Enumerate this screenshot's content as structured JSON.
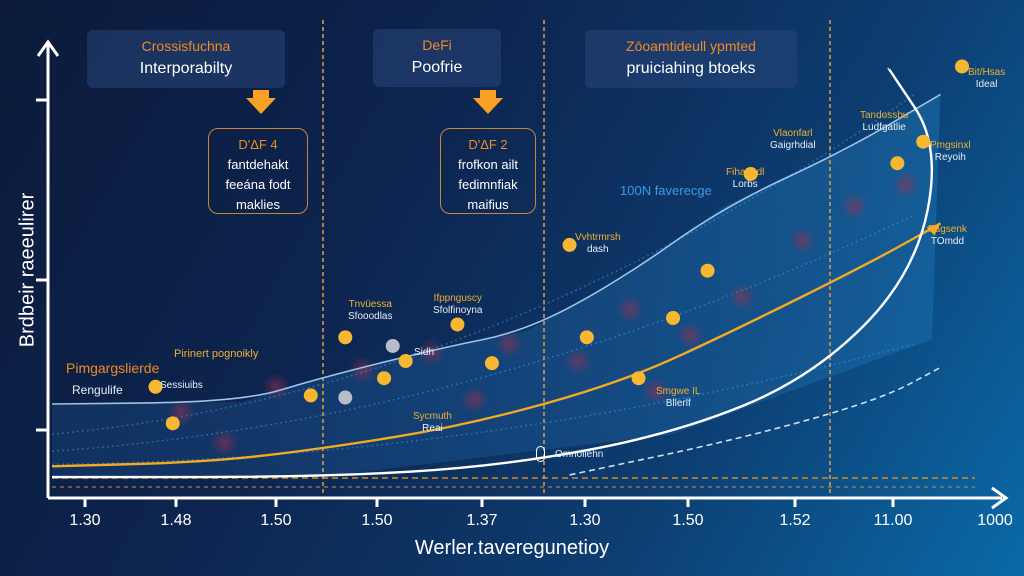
{
  "chart_data": {
    "type": "scatter",
    "title": "",
    "xlabel": "Werler.taveregunetioy",
    "ylabel": "Brdbeir raeeulirer",
    "x_tick_labels": [
      "1.30",
      "1.48",
      "1.50",
      "1.50",
      "1.37",
      "1.30",
      "1.50",
      "1.52",
      "11.00",
      "1000"
    ],
    "xlim": [
      0,
      10
    ],
    "ylim": [
      0,
      10
    ],
    "grid": false,
    "phase_dividers_x": [
      3.1,
      6.05,
      9.4
    ],
    "series": [
      {
        "name": "upper-band",
        "kind": "line",
        "color": "#9fc4e6",
        "points": [
          [
            0,
            2.0
          ],
          [
            2.2,
            2.05
          ],
          [
            3.1,
            2.6
          ],
          [
            4.5,
            3.3
          ],
          [
            5.5,
            3.7
          ],
          [
            6.6,
            4.9
          ],
          [
            7.8,
            6.6
          ],
          [
            9.2,
            7.9
          ],
          [
            10.3,
            9.2
          ]
        ]
      },
      {
        "name": "adoption-curve",
        "kind": "line",
        "color": "#f2aa22",
        "points": [
          [
            0,
            0.55
          ],
          [
            1.8,
            0.65
          ],
          [
            3.1,
            0.95
          ],
          [
            4.8,
            1.5
          ],
          [
            6.6,
            2.5
          ],
          [
            7.9,
            3.7
          ],
          [
            9.5,
            5.3
          ],
          [
            10.3,
            6.2
          ]
        ]
      },
      {
        "name": "baseline-curve",
        "kind": "line",
        "color": "#ffffff",
        "points": [
          [
            0,
            0.3
          ],
          [
            3.1,
            0.3
          ],
          [
            5.2,
            0.55
          ],
          [
            7.2,
            1.3
          ],
          [
            8.8,
            2.6
          ],
          [
            10.0,
            5.0
          ],
          [
            10.3,
            8.0
          ],
          [
            9.7,
            9.8
          ]
        ]
      },
      {
        "name": "projection-dashed",
        "kind": "line",
        "color": "#cfe0f0",
        "points": [
          [
            6.0,
            0.35
          ],
          [
            8.0,
            1.2
          ],
          [
            9.6,
            2.1
          ],
          [
            10.3,
            2.85
          ]
        ]
      },
      {
        "name": "milestones",
        "kind": "scatter",
        "color": "#f7b731",
        "points": [
          [
            1.4,
            1.55
          ],
          [
            1.2,
            2.4
          ],
          [
            3.0,
            2.2
          ],
          [
            3.4,
            3.55
          ],
          [
            3.85,
            2.6
          ],
          [
            4.1,
            3.0
          ],
          [
            4.7,
            3.85
          ],
          [
            5.1,
            2.95
          ],
          [
            6.0,
            5.7
          ],
          [
            6.2,
            3.55
          ],
          [
            6.8,
            2.6
          ],
          [
            7.2,
            4.0
          ],
          [
            7.6,
            5.1
          ],
          [
            8.1,
            7.35
          ],
          [
            9.8,
            7.6
          ],
          [
            10.1,
            8.1
          ],
          [
            10.55,
            9.85
          ]
        ]
      },
      {
        "name": "muted-points",
        "kind": "scatter",
        "color": "#b8bec8",
        "points": [
          [
            3.4,
            2.15
          ],
          [
            3.95,
            3.35
          ]
        ]
      }
    ],
    "annotations": {
      "top_callouts": [
        {
          "title": "Crossisfuchna",
          "subtitle": "Interporabilty"
        },
        {
          "title": "DeFi",
          "subtitle": "Poofrie"
        },
        {
          "title": "Zōoamtideull ypmted",
          "subtitle": "pruiciahing btoeks"
        }
      ],
      "draft_boxes": [
        {
          "title": "D'ΔF 4",
          "lines": [
            "fantdehakt",
            "feeána fodt",
            "maklies"
          ]
        },
        {
          "title": "D'ΔF 2",
          "lines": [
            "frofkon ailt",
            "fedimnfiak",
            "maifius"
          ]
        }
      ],
      "point_labels": [
        {
          "a": "Tnvüessa",
          "b": "Sfooodlas"
        },
        {
          "a": "Ifppnguscy",
          "b": "Sfolfinoyna"
        },
        {
          "a": "Vvhtrmrsh",
          "b": "dash"
        },
        {
          "a": "Fihaandl",
          "b": "Lorbs"
        },
        {
          "a": "Vlaonfarl",
          "b": "Gaigrhdial"
        },
        {
          "a": "Tandossbu",
          "b": "Ludfgatlie"
        },
        {
          "a": "Bit/Hsas",
          "b": "Ideal"
        },
        {
          "a": "Pmgsinxl",
          "b": "Reyoih"
        },
        {
          "a": "Pagsenk",
          "b": "TOmdd"
        },
        {
          "a": "Sidh",
          "b": ""
        },
        {
          "a": "Sycmuth",
          "b": "Reai"
        },
        {
          "a": "Smgwe IL",
          "b": "Bllerlf"
        },
        {
          "a": "",
          "b": "Sessiuibs"
        },
        {
          "a": "",
          "b": "Omnoilehn"
        }
      ],
      "region_labels": {
        "left_title": "Pimgargslierde",
        "left_sub": "Rengulife",
        "mid": "Pirinert pognoikly",
        "leverage": "100N faverecge"
      }
    }
  }
}
